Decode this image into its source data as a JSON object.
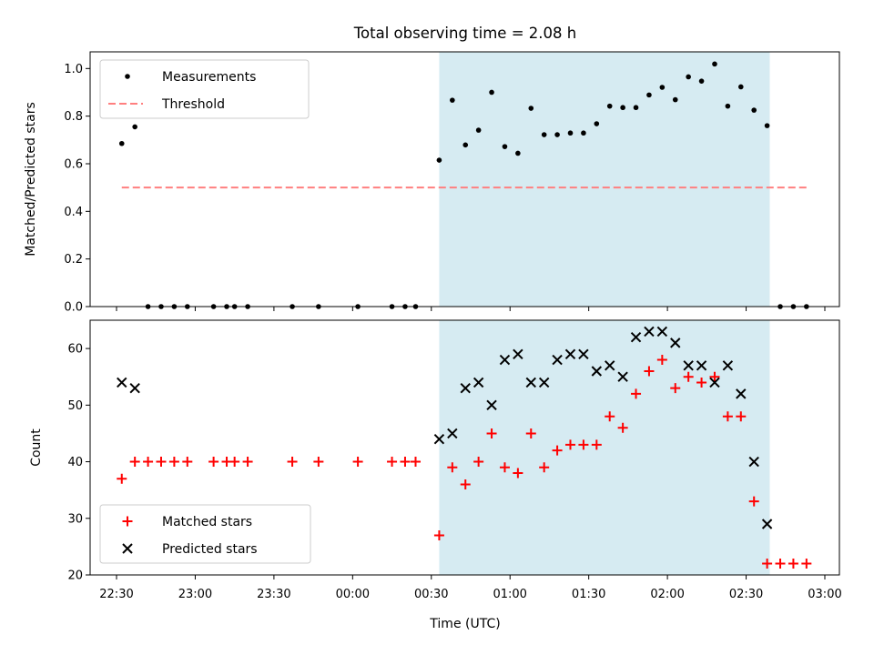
{
  "chart_data": {
    "title": "Total observing time = 2.08 h",
    "xlabel": "Time (UTC)",
    "x_ticks": [
      "22:30",
      "23:00",
      "23:30",
      "00:00",
      "00:30",
      "01:00",
      "01:30",
      "02:00",
      "02:30",
      "03:00"
    ],
    "shaded_interval": {
      "start": "00:33",
      "end": "02:39",
      "color": "#add8e6"
    },
    "panels": [
      {
        "type": "scatter",
        "ylabel": "Matched/Predicted stars",
        "ylim": [
          0,
          1.07
        ],
        "y_ticks": [
          "0.0",
          "0.2",
          "0.4",
          "0.6",
          "0.8",
          "1.0"
        ],
        "legend": {
          "position": "top-left",
          "entries": [
            "Measurements",
            "Threshold"
          ]
        },
        "series": [
          {
            "name": "Measurements",
            "marker": "dot",
            "color": "#000000",
            "x": [
              "22:32",
              "22:37",
              "22:42",
              "22:47",
              "22:52",
              "22:57",
              "23:07",
              "23:12",
              "23:15",
              "23:20",
              "23:37",
              "23:47",
              "24:02",
              "24:15",
              "24:20",
              "24:24",
              "24:33",
              "24:38",
              "24:43",
              "24:48",
              "24:53",
              "24:58",
              "25:03",
              "25:08",
              "25:13",
              "25:18",
              "25:23",
              "25:28",
              "25:33",
              "25:38",
              "25:43",
              "25:48",
              "25:53",
              "25:58",
              "26:03",
              "26:08",
              "26:13",
              "26:18",
              "26:23",
              "26:28",
              "26:33",
              "26:38",
              "26:43",
              "26:48",
              "26:53"
            ],
            "y": [
              0.685,
              0.755,
              0,
              0,
              0,
              0,
              0,
              0,
              0,
              0,
              0,
              0,
              0,
              0,
              0,
              0,
              0.615,
              0.867,
              0.679,
              0.741,
              0.9,
              0.672,
              0.644,
              0.833,
              0.722,
              0.722,
              0.729,
              0.729,
              0.768,
              0.842,
              0.836,
              0.836,
              0.889,
              0.921,
              0.869,
              0.965,
              0.947,
              1.019,
              0.842,
              0.923,
              0.825,
              0.76,
              0,
              0,
              0
            ]
          },
          {
            "name": "Threshold",
            "style": "dashed",
            "color": "#ff7f7f",
            "x": [
              "22:32",
              "26:53"
            ],
            "y": [
              0.5,
              0.5
            ]
          }
        ]
      },
      {
        "type": "scatter",
        "ylabel": "Count",
        "ylim": [
          20,
          65
        ],
        "y_ticks": [
          "20",
          "30",
          "40",
          "50",
          "60"
        ],
        "legend": {
          "position": "bottom-left",
          "entries": [
            "Matched stars",
            "Predicted stars"
          ]
        },
        "series": [
          {
            "name": "Matched stars",
            "marker": "plus",
            "color": "#ff0000",
            "x": [
              "22:32",
              "22:37",
              "22:42",
              "22:47",
              "22:52",
              "22:57",
              "23:07",
              "23:12",
              "23:15",
              "23:20",
              "23:37",
              "23:47",
              "24:02",
              "24:15",
              "24:20",
              "24:24",
              "24:33",
              "24:38",
              "24:43",
              "24:48",
              "24:53",
              "24:58",
              "25:03",
              "25:08",
              "25:13",
              "25:18",
              "25:23",
              "25:28",
              "25:33",
              "25:38",
              "25:43",
              "25:48",
              "25:53",
              "25:58",
              "26:03",
              "26:08",
              "26:13",
              "26:18",
              "26:23",
              "26:28",
              "26:33",
              "26:38",
              "26:43",
              "26:48",
              "26:53"
            ],
            "y": [
              37,
              40,
              40,
              40,
              40,
              40,
              40,
              40,
              40,
              40,
              40,
              40,
              40,
              40,
              40,
              40,
              27,
              39,
              36,
              40,
              45,
              39,
              38,
              45,
              39,
              42,
              43,
              43,
              43,
              48,
              46,
              52,
              56,
              58,
              53,
              55,
              54,
              55,
              48,
              48,
              33,
              22,
              22,
              22,
              22
            ]
          },
          {
            "name": "Predicted stars",
            "marker": "x",
            "color": "#000000",
            "x": [
              "22:32",
              "22:37",
              "24:33",
              "24:38",
              "24:43",
              "24:48",
              "24:53",
              "24:58",
              "25:03",
              "25:08",
              "25:13",
              "25:18",
              "25:23",
              "25:28",
              "25:33",
              "25:38",
              "25:43",
              "25:48",
              "25:53",
              "25:58",
              "26:03",
              "26:08",
              "26:13",
              "26:18",
              "26:23",
              "26:28",
              "26:33",
              "26:38"
            ],
            "y": [
              54,
              53,
              44,
              45,
              53,
              54,
              50,
              58,
              59,
              54,
              54,
              58,
              59,
              59,
              56,
              57,
              55,
              62,
              63,
              63,
              61,
              57,
              57,
              54,
              57,
              52,
              40,
              29
            ]
          }
        ]
      }
    ]
  }
}
